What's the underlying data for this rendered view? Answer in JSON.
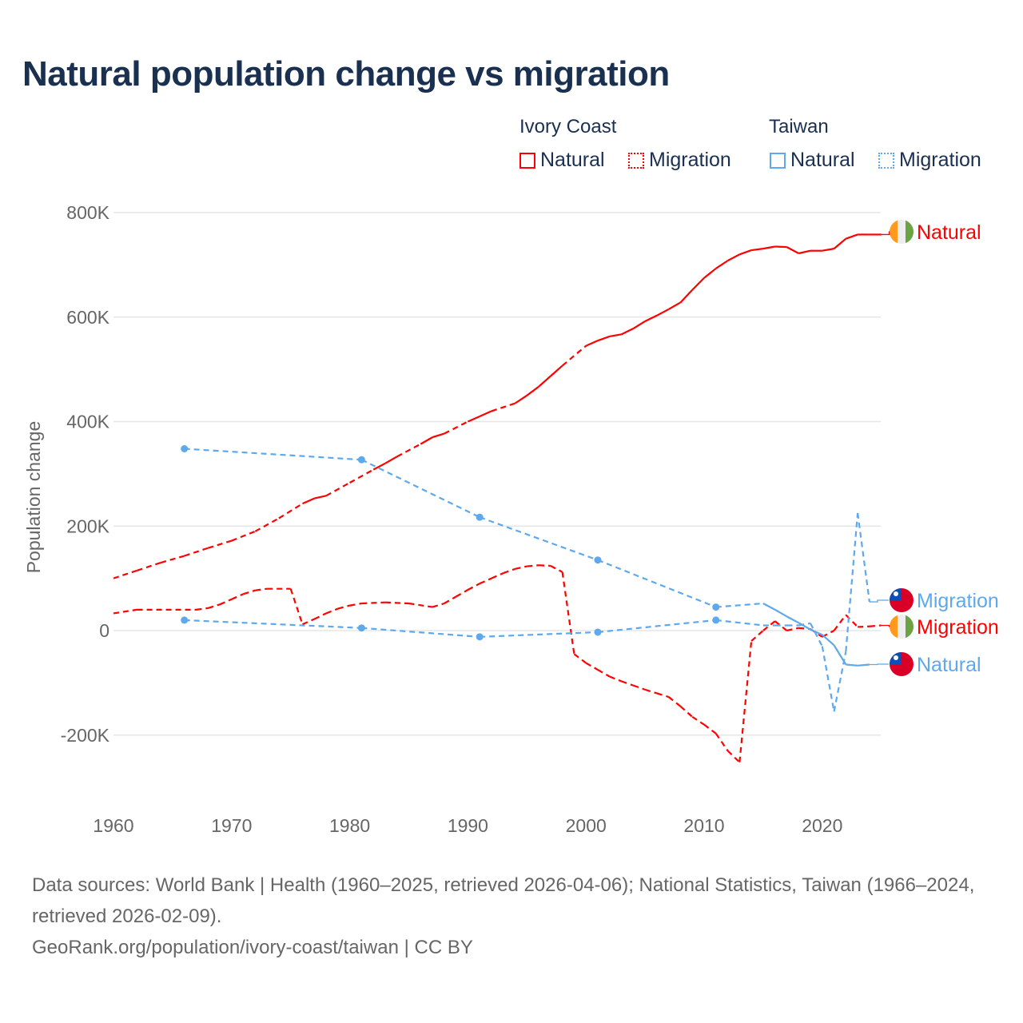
{
  "title": "Natural population change vs migration",
  "legend": {
    "groups": [
      {
        "name": "Ivory Coast",
        "items": [
          {
            "label": "Natural",
            "style": "solid",
            "color": "#ff0000"
          },
          {
            "label": "Migration",
            "style": "dotted",
            "color": "#ff0000"
          }
        ]
      },
      {
        "name": "Taiwan",
        "items": [
          {
            "label": "Natural",
            "style": "solid",
            "color": "#5ea8ec"
          },
          {
            "label": "Migration",
            "style": "dotted",
            "color": "#5ea8ec"
          }
        ]
      }
    ]
  },
  "chart_data": {
    "type": "line",
    "title": "Natural population change vs migration",
    "xlabel": "",
    "ylabel": "Population change",
    "xlim": [
      1960,
      2025
    ],
    "ylim": [
      -300000,
      850000
    ],
    "xticks": [
      1960,
      1970,
      1980,
      1990,
      2000,
      2010,
      2020
    ],
    "xtick_labels": [
      "1960",
      "1970",
      "1980",
      "1990",
      "2000",
      "2010",
      "2020"
    ],
    "yticks": [
      800000,
      600000,
      400000,
      200000,
      0,
      -200000
    ],
    "ytick_labels": [
      "800K",
      "600K",
      "400K",
      "200K",
      "0",
      "-200K"
    ],
    "grid": true,
    "series": [
      {
        "name": "Ivory Coast Natural",
        "end_label": "Natural",
        "country": "ivory-coast",
        "color": "#ff0000",
        "dash": false,
        "x": [
          1960,
          1962,
          1964,
          1966,
          1968,
          1970,
          1972,
          1974,
          1976,
          1977,
          1978,
          1980,
          1982,
          1983,
          1984,
          1986,
          1987,
          1988,
          1990,
          1991,
          1992,
          1994,
          1995,
          1996,
          1997,
          1998,
          2000,
          2001,
          2002,
          2003,
          2004,
          2005,
          2006,
          2007,
          2008,
          2009,
          2010,
          2011,
          2012,
          2013,
          2014,
          2015,
          2016,
          2017,
          2018,
          2019,
          2020,
          2021,
          2022,
          2023,
          2024,
          2025
        ],
        "y": [
          100,
          115,
          130,
          143,
          158,
          172,
          190,
          215,
          243,
          253,
          258,
          283,
          308,
          320,
          333,
          357,
          370,
          377,
          400,
          410,
          420,
          435,
          450,
          467,
          487,
          507,
          545,
          555,
          563,
          567,
          578,
          592,
          603,
          615,
          628,
          652,
          675,
          693,
          708,
          720,
          728,
          731,
          735,
          734,
          722,
          727,
          727,
          731,
          750,
          758,
          758,
          758
        ],
        "y_unit": "thousands"
      },
      {
        "name": "Ivory Coast Migration",
        "end_label": "Migration",
        "country": "ivory-coast",
        "color": "#ff0000",
        "dash": true,
        "x": [
          1960,
          1962,
          1967,
          1968,
          1969,
          1970,
          1971,
          1972,
          1973,
          1975,
          1976,
          1977,
          1978,
          1979,
          1980,
          1981,
          1983,
          1985,
          1987,
          1988,
          1989,
          1990,
          1991,
          1992,
          1993,
          1994,
          1995,
          1996,
          1997,
          1998,
          1999,
          2000,
          2001,
          2002,
          2003,
          2004,
          2005,
          2006,
          2007,
          2008,
          2009,
          2010,
          2011,
          2012,
          2013,
          2014,
          2015,
          2016,
          2017,
          2018,
          2019,
          2020,
          2021,
          2022,
          2023,
          2024,
          2025
        ],
        "y": [
          33,
          40,
          40,
          43,
          50,
          60,
          70,
          77,
          80,
          80,
          12,
          22,
          33,
          42,
          48,
          52,
          54,
          52,
          45,
          52,
          65,
          78,
          90,
          100,
          110,
          118,
          123,
          125,
          124,
          112,
          -45,
          -62,
          -75,
          -88,
          -97,
          -105,
          -113,
          -120,
          -127,
          -145,
          -165,
          -180,
          -197,
          -230,
          -252,
          -20,
          0,
          18,
          0,
          5,
          3,
          -12,
          0,
          30,
          7,
          8,
          10
        ],
        "y_unit": "thousands"
      },
      {
        "name": "Taiwan Natural",
        "end_label": "Natural",
        "country": "taiwan",
        "color": "#5ea8ec",
        "dash": false,
        "markers": [
          1966,
          1981,
          1991,
          2001,
          2011
        ],
        "x": [
          1966,
          1981,
          1991,
          2001,
          2011,
          2015,
          2016,
          2017,
          2018,
          2019,
          2020,
          2021,
          2022,
          2023,
          2024
        ],
        "y": [
          348,
          327,
          217,
          135,
          45,
          52,
          40,
          27,
          15,
          2,
          -8,
          -28,
          -65,
          -67,
          -65
        ],
        "y_unit": "thousands"
      },
      {
        "name": "Taiwan Migration",
        "end_label": "Migration",
        "country": "taiwan",
        "color": "#5ea8ec",
        "dash": true,
        "markers": [
          1966,
          1981,
          1991,
          2001,
          2011
        ],
        "x": [
          1966,
          1981,
          1991,
          2001,
          2011,
          2015,
          2016,
          2017,
          2018,
          2019,
          2020,
          2021,
          2022,
          2023,
          2024
        ],
        "y": [
          20,
          5,
          -12,
          -3,
          20,
          10,
          10,
          10,
          10,
          14,
          -30,
          -155,
          -40,
          225,
          55
        ],
        "y_unit": "thousands"
      }
    ]
  },
  "footer": {
    "sources": "Data sources: World Bank | Health (1960–2025, retrieved 2026-04-06); National Statistics, Taiwan (1966–2024, retrieved 2026-02-09).",
    "credit": "GeoRank.org/population/ivory-coast/taiwan | CC BY"
  }
}
